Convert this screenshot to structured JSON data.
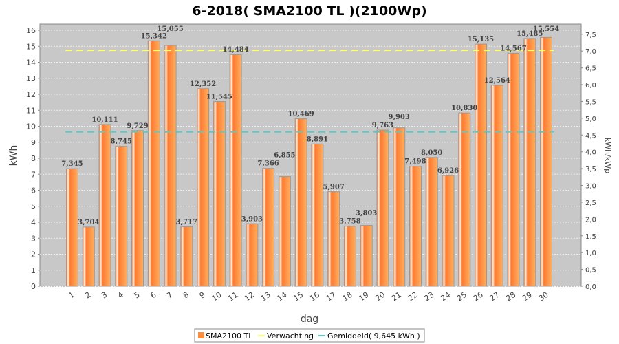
{
  "chart_data": {
    "type": "bar",
    "title": "6-2018( SMA2100 TL )(2100Wp)",
    "xlabel": "dag",
    "ylabel": "kWh",
    "y2label": "kWh/kWp",
    "ylim": [
      0,
      16
    ],
    "y2lim": [
      0,
      7.5
    ],
    "grid": true,
    "legend_position": "bottom",
    "categories": [
      "1",
      "2",
      "3",
      "4",
      "5",
      "6",
      "7",
      "8",
      "9",
      "10",
      "11",
      "12",
      "13",
      "14",
      "15",
      "16",
      "17",
      "18",
      "19",
      "20",
      "21",
      "22",
      "23",
      "24",
      "25",
      "26",
      "27",
      "28",
      "29",
      "30"
    ],
    "series": [
      {
        "name": "SMA2100 TL",
        "color": "#ff8c3a",
        "values": [
          7.345,
          3.704,
          10.111,
          8.745,
          9.729,
          15.342,
          15.055,
          3.717,
          12.352,
          11.545,
          14.484,
          3.903,
          7.366,
          6.855,
          10.469,
          8.891,
          5.907,
          3.758,
          3.803,
          9.763,
          9.903,
          7.498,
          8.05,
          6.926,
          10.83,
          15.135,
          12.564,
          14.567,
          15.485,
          15.554
        ]
      }
    ],
    "value_labels": [
      "7,345",
      "3,704",
      "10,111",
      "8,745",
      "9,729",
      "15,342",
      "15,055",
      "3,717",
      "12,352",
      "11,545",
      "14,484",
      "3,903",
      "7,366",
      "6,855",
      "10,469",
      "8,891",
      "5,907",
      "3,758",
      "3,803",
      "9,763",
      "9,903",
      "7,498",
      "8,050",
      "6,926",
      "10,830",
      "15,135",
      "12,564",
      "14,567",
      "15,485",
      "15,554"
    ],
    "lines": [
      {
        "name": "Verwachting",
        "color": "#ffff66",
        "value": 14.75
      },
      {
        "name": "Gemiddeld( 9,645 kWh )",
        "color": "#55cccc",
        "value": 9.645
      }
    ],
    "yticks": [
      "0",
      "1",
      "2",
      "3",
      "4",
      "5",
      "6",
      "7",
      "8",
      "9",
      "10",
      "11",
      "12",
      "13",
      "14",
      "15",
      "16"
    ],
    "y2ticks": [
      "0,0",
      "0,5",
      "1,0",
      "1,5",
      "2,0",
      "2,5",
      "3,0",
      "3,5",
      "4,0",
      "4,5",
      "5,0",
      "5,5",
      "6,0",
      "6,5",
      "7,0",
      "7,5"
    ]
  }
}
